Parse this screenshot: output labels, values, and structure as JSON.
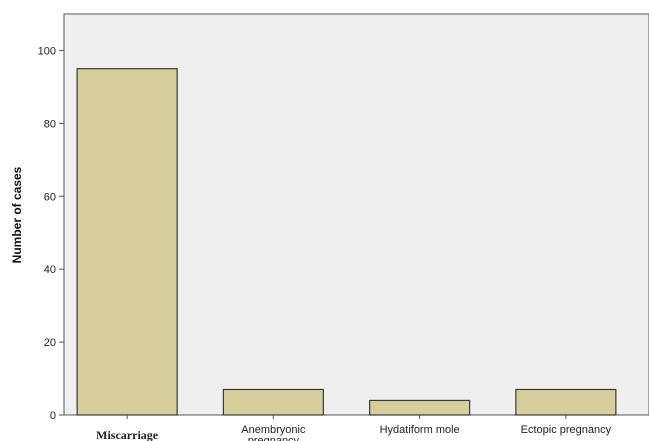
{
  "chart_data": {
    "type": "bar",
    "categories": [
      "Miscarriage",
      "Anembryonic pregnancy",
      "Hydatiform mole",
      "Ectopic pregnancy"
    ],
    "category_lines": [
      [
        "Miscarriage"
      ],
      [
        "Anembryonic",
        "pregnancy"
      ],
      [
        "Hydatiform mole"
      ],
      [
        "Ectopic pregnancy"
      ]
    ],
    "values": [
      95,
      7,
      4,
      7
    ],
    "xlabel": "",
    "ylabel": "Number of cases",
    "ylim": [
      0,
      110
    ],
    "yticks": [
      0,
      20,
      40,
      60,
      80,
      100
    ],
    "grid": false,
    "legend": "none",
    "colors": {
      "plot_background": "#efefef",
      "bar_fill": "#d6cf9c",
      "bar_stroke": "#3a3a3a",
      "axis": "#555555"
    }
  }
}
